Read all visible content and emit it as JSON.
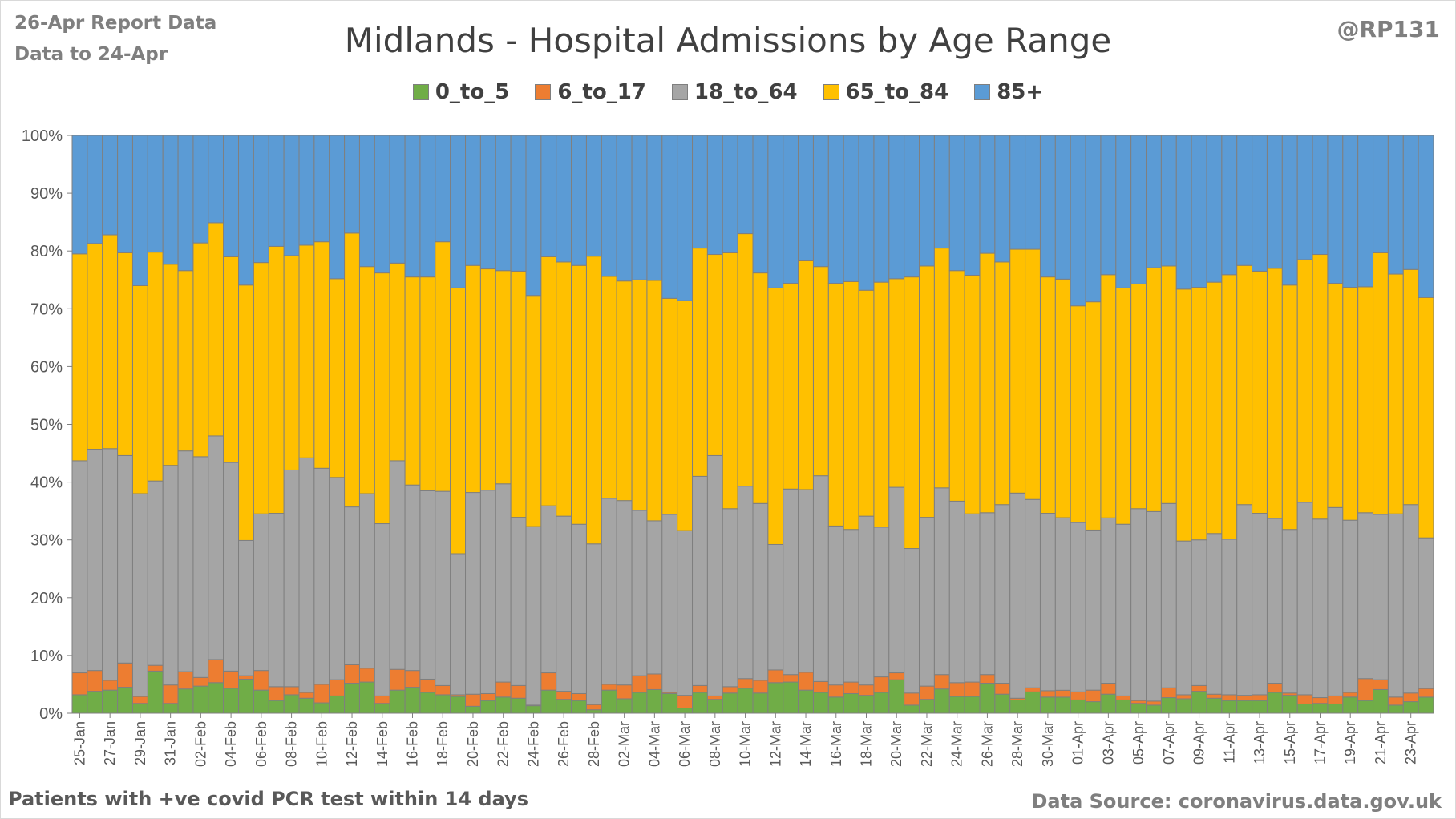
{
  "header": {
    "report_date": "26-Apr Report Data",
    "data_to": "Data to 24-Apr",
    "handle": "@RP131",
    "footnote": "Patients with  +ve covid PCR test within 14 days",
    "source": "Data Source: coronavirus.data.gov.uk"
  },
  "colors": {
    "0_to_5": "#70ad47",
    "6_to_17": "#ed7d31",
    "18_to_64": "#a5a5a5",
    "65_to_84": "#ffc000",
    "85+": "#5b9bd5"
  },
  "chart_data": {
    "type": "bar",
    "stacked": "100%",
    "title": "Midlands - Hospital Admissions by Age Range",
    "xlabel": "",
    "ylabel": "",
    "ylim": [
      0,
      100
    ],
    "yticks": [
      "0%",
      "10%",
      "20%",
      "30%",
      "40%",
      "50%",
      "60%",
      "70%",
      "80%",
      "90%",
      "100%"
    ],
    "grid": false,
    "legend_position": "top",
    "x_tick_labels": [
      "25-Jan",
      "27-Jan",
      "29-Jan",
      "31-Jan",
      "02-Feb",
      "04-Feb",
      "06-Feb",
      "08-Feb",
      "10-Feb",
      "12-Feb",
      "14-Feb",
      "16-Feb",
      "18-Feb",
      "20-Feb",
      "22-Feb",
      "24-Feb",
      "26-Feb",
      "28-Feb",
      "02-Mar",
      "04-Mar",
      "06-Mar",
      "08-Mar",
      "10-Mar",
      "12-Mar",
      "14-Mar",
      "16-Mar",
      "18-Mar",
      "20-Mar",
      "22-Mar",
      "24-Mar",
      "26-Mar",
      "28-Mar",
      "30-Mar",
      "01-Apr",
      "03-Apr",
      "05-Apr",
      "07-Apr",
      "09-Apr",
      "11-Apr",
      "13-Apr",
      "15-Apr",
      "17-Apr",
      "19-Apr",
      "21-Apr",
      "23-Apr"
    ],
    "categories": [
      "25-Jan",
      "26-Jan",
      "27-Jan",
      "28-Jan",
      "29-Jan",
      "30-Jan",
      "31-Jan",
      "01-Feb",
      "02-Feb",
      "03-Feb",
      "04-Feb",
      "05-Feb",
      "06-Feb",
      "07-Feb",
      "08-Feb",
      "09-Feb",
      "10-Feb",
      "11-Feb",
      "12-Feb",
      "13-Feb",
      "14-Feb",
      "15-Feb",
      "16-Feb",
      "17-Feb",
      "18-Feb",
      "19-Feb",
      "20-Feb",
      "21-Feb",
      "22-Feb",
      "23-Feb",
      "24-Feb",
      "25-Feb",
      "26-Feb",
      "27-Feb",
      "28-Feb",
      "01-Mar",
      "02-Mar",
      "03-Mar",
      "04-Mar",
      "05-Mar",
      "06-Mar",
      "07-Mar",
      "08-Mar",
      "09-Mar",
      "10-Mar",
      "11-Mar",
      "12-Mar",
      "13-Mar",
      "14-Mar",
      "15-Mar",
      "16-Mar",
      "17-Mar",
      "18-Mar",
      "19-Mar",
      "20-Mar",
      "21-Mar",
      "22-Mar",
      "23-Mar",
      "24-Mar",
      "25-Mar",
      "26-Mar",
      "27-Mar",
      "28-Mar",
      "29-Mar",
      "30-Mar",
      "31-Mar",
      "01-Apr",
      "02-Apr",
      "03-Apr",
      "04-Apr",
      "05-Apr",
      "06-Apr",
      "07-Apr",
      "08-Apr",
      "09-Apr",
      "10-Apr",
      "11-Apr",
      "12-Apr",
      "13-Apr",
      "14-Apr",
      "15-Apr",
      "16-Apr",
      "17-Apr",
      "18-Apr",
      "19-Apr",
      "20-Apr",
      "21-Apr",
      "22-Apr",
      "23-Apr",
      "24-Apr"
    ],
    "series": [
      {
        "name": "0_to_5",
        "values": [
          3.2,
          3.8,
          4.0,
          4.5,
          1.7,
          7.3,
          1.7,
          4.2,
          4.7,
          5.3,
          4.3,
          5.9,
          4.0,
          2.2,
          3.2,
          2.6,
          1.8,
          3.0,
          5.2,
          5.4,
          1.7,
          4.0,
          4.5,
          3.6,
          3.2,
          2.9,
          1.2,
          2.2,
          2.8,
          2.6,
          1.3,
          4.0,
          2.4,
          2.2,
          0.6,
          4.0,
          2.5,
          3.6,
          4.1,
          3.4,
          0.9,
          3.6,
          2.4,
          3.5,
          4.3,
          3.5,
          5.3,
          5.4,
          4.0,
          3.6,
          2.8,
          3.4,
          3.1,
          3.6,
          5.8,
          1.4,
          2.4,
          4.2,
          2.9,
          2.9,
          5.2,
          3.3,
          2.3,
          3.7,
          2.8,
          2.8,
          2.3,
          2.0,
          3.3,
          2.3,
          1.7,
          1.4,
          2.7,
          2.5,
          3.8,
          2.6,
          2.2,
          2.2,
          2.2,
          3.6,
          3.1,
          1.6,
          1.7,
          1.6,
          2.8,
          2.2,
          4.1,
          1.4,
          2.0,
          2.8
        ]
      },
      {
        "name": "6_to_17",
        "values": [
          3.8,
          3.6,
          1.7,
          4.2,
          1.2,
          1.0,
          3.2,
          3.0,
          1.5,
          4.0,
          3.0,
          0.6,
          3.4,
          2.4,
          1.4,
          1.0,
          3.2,
          2.8,
          3.2,
          2.4,
          1.3,
          3.6,
          2.9,
          2.3,
          1.6,
          0.3,
          2.1,
          1.2,
          2.6,
          2.2,
          0.1,
          3.0,
          1.4,
          1.2,
          0.9,
          1.0,
          2.4,
          2.9,
          2.7,
          0.2,
          2.2,
          1.2,
          0.6,
          1.1,
          1.7,
          2.2,
          2.2,
          1.3,
          3.1,
          1.9,
          2.1,
          2.0,
          1.8,
          2.7,
          1.2,
          2.1,
          2.3,
          2.5,
          2.4,
          2.5,
          1.5,
          1.9,
          0.3,
          0.7,
          1.1,
          1.2,
          1.4,
          2.0,
          1.9,
          0.7,
          0.5,
          0.7,
          1.7,
          0.7,
          1.0,
          0.7,
          1.0,
          0.9,
          1.0,
          1.6,
          0.4,
          1.6,
          1.0,
          1.4,
          0.8,
          3.8,
          1.7,
          1.4,
          1.5,
          1.5
        ]
      },
      {
        "name": "18_to_64",
        "values": [
          36.7,
          38.3,
          40.1,
          35.9,
          35.1,
          31.9,
          38.0,
          38.2,
          38.2,
          38.7,
          36.1,
          23.4,
          27.1,
          30.0,
          37.5,
          40.6,
          37.4,
          35.0,
          27.3,
          30.2,
          29.8,
          36.1,
          32.1,
          32.6,
          33.6,
          24.4,
          34.9,
          35.2,
          34.3,
          29.1,
          30.9,
          28.9,
          30.3,
          29.3,
          27.8,
          32.2,
          31.9,
          28.6,
          26.5,
          30.8,
          28.5,
          36.2,
          41.6,
          30.8,
          33.3,
          30.6,
          21.7,
          32.1,
          31.6,
          35.6,
          27.5,
          26.4,
          29.2,
          25.9,
          32.1,
          25.0,
          29.2,
          32.3,
          31.4,
          29.1,
          28.0,
          30.9,
          35.5,
          32.6,
          30.7,
          30.0,
          29.3,
          27.7,
          28.6,
          29.7,
          33.2,
          32.8,
          31.9,
          26.6,
          25.2,
          27.8,
          26.9,
          33.0,
          31.4,
          28.5,
          28.3,
          33.3,
          30.9,
          32.6,
          29.8,
          28.7,
          28.6,
          31.7,
          32.6,
          26.2
        ]
      },
      {
        "name": "65_to_84",
        "values": [
          35.8,
          35.6,
          37.0,
          35.1,
          36.0,
          39.6,
          34.8,
          31.2,
          37.0,
          36.9,
          35.6,
          44.2,
          43.5,
          46.2,
          37.1,
          36.8,
          39.2,
          34.4,
          47.4,
          39.3,
          43.4,
          34.2,
          36.0,
          37.0,
          43.2,
          46.0,
          39.3,
          38.3,
          36.9,
          42.6,
          40.0,
          43.1,
          44.0,
          44.8,
          49.8,
          38.4,
          38.0,
          39.9,
          41.6,
          37.4,
          39.8,
          39.5,
          34.8,
          44.3,
          43.7,
          39.9,
          44.4,
          35.6,
          39.6,
          36.2,
          42.0,
          42.9,
          39.1,
          42.4,
          36.1,
          47.0,
          43.5,
          41.5,
          39.9,
          41.3,
          44.9,
          42.0,
          42.2,
          43.3,
          40.9,
          41.5,
          37.5,
          39.5,
          42.1,
          40.9,
          38.9,
          42.2,
          41.1,
          43.6,
          43.7,
          43.5,
          45.8,
          41.4,
          41.9,
          43.3,
          42.3,
          42.0,
          45.8,
          38.8,
          40.3,
          39.1,
          45.3,
          41.5,
          40.7,
          41.8
        ]
      },
      {
        "name": "85+",
        "values": [
          20.5,
          18.7,
          17.2,
          20.3,
          26.0,
          20.2,
          22.3,
          23.4,
          18.6,
          15.1,
          21.0,
          25.9,
          22.0,
          19.2,
          20.8,
          19.0,
          18.4,
          24.8,
          16.9,
          22.7,
          23.8,
          22.1,
          24.5,
          24.5,
          18.4,
          26.4,
          22.5,
          23.1,
          23.4,
          23.5,
          27.7,
          21.0,
          21.9,
          22.5,
          20.9,
          24.4,
          25.2,
          25.0,
          25.1,
          28.2,
          28.6,
          19.5,
          20.6,
          20.3,
          17.0,
          23.8,
          26.4,
          25.6,
          21.7,
          22.7,
          25.6,
          25.3,
          26.8,
          25.4,
          24.8,
          24.5,
          22.6,
          19.5,
          23.4,
          24.2,
          20.4,
          21.9,
          19.7,
          19.7,
          24.5,
          25.0,
          29.5,
          28.8,
          24.1,
          26.4,
          25.7,
          22.9,
          22.6,
          26.6,
          26.3,
          25.4,
          24.1,
          22.5,
          23.5,
          23.0,
          25.9,
          21.5,
          20.6,
          25.6,
          26.3,
          26.2,
          20.3,
          24.0,
          23.2,
          28.2
        ]
      }
    ]
  }
}
